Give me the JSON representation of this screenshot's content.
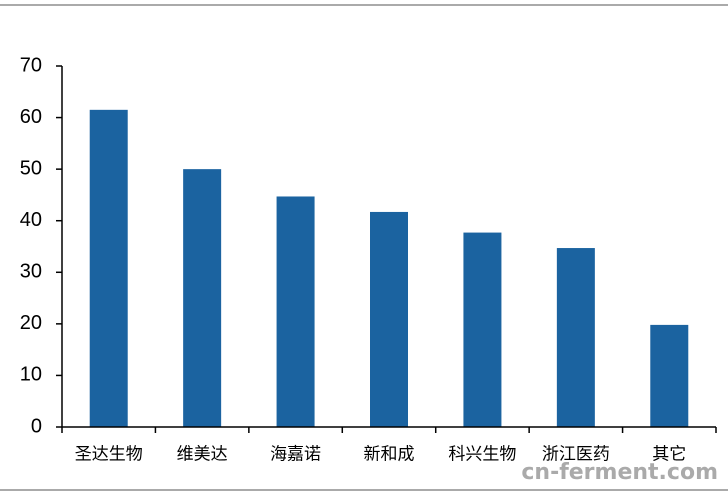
{
  "chart_data": {
    "type": "bar",
    "categories": [
      "圣达生物",
      "维美达",
      "海嘉诺",
      "新和成",
      "科兴生物",
      "浙江医药",
      "其它"
    ],
    "values": [
      61.5,
      50,
      44.7,
      41.7,
      37.7,
      34.7,
      19.8
    ],
    "color": "#1b63a0",
    "ylim": [
      0,
      70
    ],
    "yticks": [
      0,
      10,
      20,
      30,
      40,
      50,
      60,
      70
    ],
    "grid": false,
    "watermark": "cn-ferment.com"
  }
}
